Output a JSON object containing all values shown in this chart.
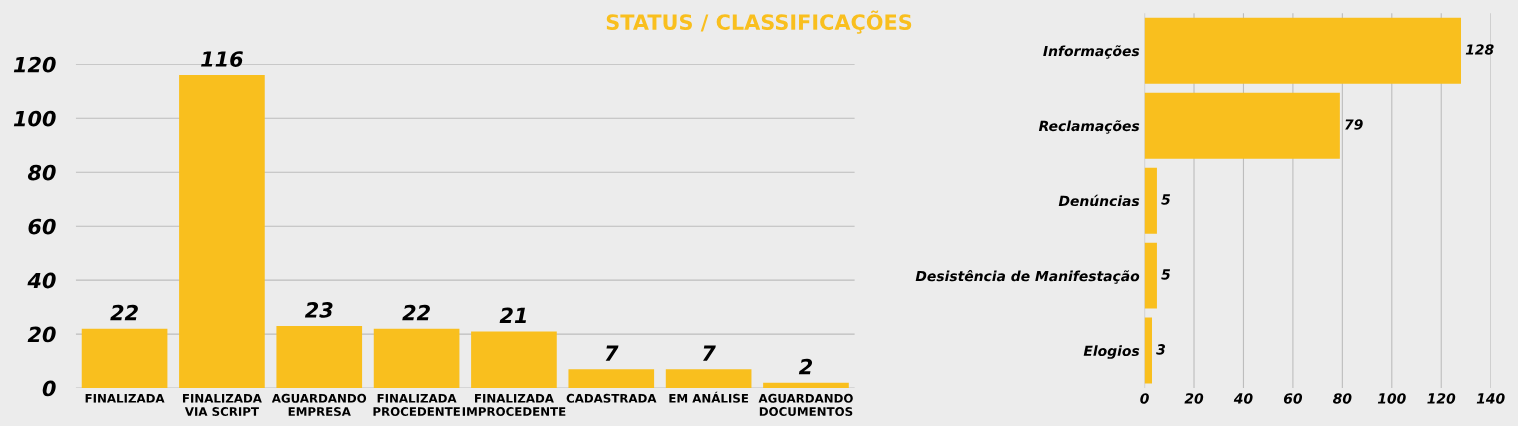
{
  "chart_data": [
    {
      "type": "bar",
      "title": "STATUS / CLASSIFICAÇÕES",
      "categories": [
        "FINALIZADA",
        "FINALIZADA\nVIA SCRIPT",
        "AGUARDANDO\nEMPRESA",
        "FINALIZADA\nPROCEDENTE",
        "FINALIZADA\nIMPROCEDENTE",
        "CADASTRADA",
        "EM ANÁLISE",
        "AGUARDANDO\nDOCUMENTOS"
      ],
      "values": [
        22,
        116,
        23,
        22,
        21,
        7,
        7,
        2
      ],
      "color": "#f9bf1e",
      "ylim": [
        0,
        120
      ],
      "yticks": [
        0,
        20,
        40,
        60,
        80,
        100,
        120
      ],
      "grid": "y",
      "data_labels": true
    },
    {
      "type": "bar",
      "orientation": "horizontal",
      "categories": [
        "Informações",
        "Reclamações",
        "Denúncias",
        "Desistência de Manifestação",
        "Elogios"
      ],
      "values": [
        128,
        79,
        5,
        5,
        3
      ],
      "color": "#f9bf1e",
      "xlim": [
        0,
        140
      ],
      "xticks": [
        0,
        20,
        40,
        60,
        80,
        100,
        120,
        140
      ],
      "grid": "x",
      "data_labels": true
    }
  ]
}
